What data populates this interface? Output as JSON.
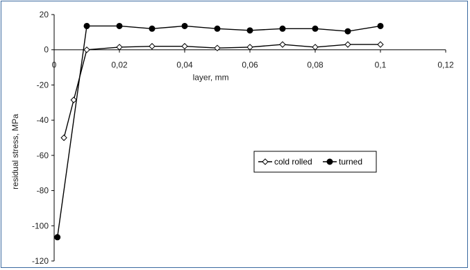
{
  "chart_data": {
    "type": "line",
    "title": "",
    "xlabel": "layer, mm",
    "ylabel": "residual stress, MPa",
    "xlim": [
      0,
      0.12
    ],
    "ylim": [
      -120,
      20
    ],
    "x_ticks": [
      0,
      0.02,
      0.04,
      0.06,
      0.08,
      0.1,
      0.12
    ],
    "x_tick_labels": [
      "0",
      "0,02",
      "0,04",
      "0,06",
      "0,08",
      "0,1",
      "0,12"
    ],
    "y_ticks": [
      20,
      0,
      -20,
      -40,
      -60,
      -80,
      -100,
      -120
    ],
    "y_tick_labels": [
      "20",
      "0",
      "-20",
      "-40",
      "-60",
      "-80",
      "-100",
      "-120"
    ],
    "grid": false,
    "legend_position": "center-right",
    "series": [
      {
        "name": "cold rolled",
        "marker": "open-diamond",
        "color": "#000000",
        "x": [
          0.003,
          0.006,
          0.01,
          0.02,
          0.03,
          0.04,
          0.05,
          0.06,
          0.07,
          0.08,
          0.09,
          0.1
        ],
        "y": [
          -50,
          -28.5,
          0,
          1.5,
          2,
          2,
          1,
          1.5,
          3,
          1.5,
          3,
          3
        ]
      },
      {
        "name": "turned",
        "marker": "filled-circle",
        "color": "#000000",
        "x": [
          0.001,
          0.01,
          0.02,
          0.03,
          0.04,
          0.05,
          0.06,
          0.07,
          0.08,
          0.09,
          0.1
        ],
        "y": [
          -106.5,
          13.5,
          13.5,
          12,
          13.5,
          12,
          11,
          12,
          12,
          10.5,
          13.5
        ]
      }
    ]
  }
}
